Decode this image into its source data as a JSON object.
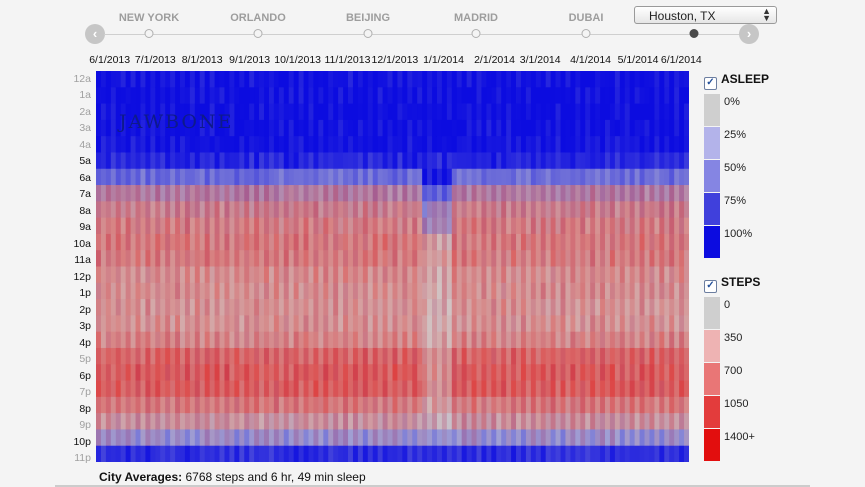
{
  "nav": {
    "cities": [
      "NEW YORK",
      "ORLANDO",
      "BEIJING",
      "MADRID",
      "DUBAI"
    ],
    "prev_arrow": "‹",
    "next_arrow": "›",
    "active_stop": 6,
    "selected_city": "Houston, TX"
  },
  "chart_data": {
    "type": "heatmap",
    "title": "",
    "xlabel": "",
    "ylabel": "",
    "x_tick_labels": [
      "6/1/2013",
      "7/1/2013",
      "8/1/2013",
      "9/1/2013",
      "10/1/2013",
      "11/1/2013",
      "12/1/2013",
      "1/1/2014",
      "2/1/2014",
      "3/1/2014",
      "4/1/2014",
      "5/1/2014",
      "6/1/2014"
    ],
    "y_tick_labels": [
      "12a",
      "1a",
      "2a",
      "3a",
      "4a",
      "5a",
      "6a",
      "7a",
      "8a",
      "9a",
      "10a",
      "11a",
      "12p",
      "1p",
      "2p",
      "3p",
      "4p",
      "5p",
      "6p",
      "7p",
      "8p",
      "9p",
      "10p",
      "11p"
    ],
    "hour_sleep_fraction": [
      0.97,
      0.98,
      0.98,
      0.98,
      0.96,
      0.88,
      0.6,
      0.3,
      0.12,
      0.05,
      0.02,
      0.01,
      0,
      0,
      0,
      0,
      0,
      0,
      0,
      0,
      0.02,
      0.12,
      0.45,
      0.85
    ],
    "hour_steps": [
      0,
      0,
      0,
      0,
      10,
      60,
      220,
      430,
      520,
      560,
      600,
      580,
      470,
      450,
      420,
      430,
      520,
      750,
      820,
      800,
      600,
      380,
      150,
      40
    ],
    "date_range": [
      "6/1/2013",
      "6/1/2014"
    ],
    "watermark": "JAWBONE",
    "legend": [
      {
        "name": "ASLEEP",
        "checked": true,
        "bins": [
          "0%",
          "25%",
          "50%",
          "75%",
          "100%"
        ],
        "colors": [
          "#cfcfcf",
          "#b3b3ea",
          "#8585e3",
          "#4040dc",
          "#0c0ce0"
        ]
      },
      {
        "name": "STEPS",
        "checked": true,
        "bins": [
          "0",
          "350",
          "700",
          "1050",
          "1400+"
        ],
        "colors": [
          "#cfcfcf",
          "#eeb3b3",
          "#e97676",
          "#e33c3c",
          "#e20e0e"
        ]
      }
    ]
  },
  "footer": {
    "label": "City Averages:",
    "text": "6768 steps and 6 hr, 49 min sleep"
  }
}
